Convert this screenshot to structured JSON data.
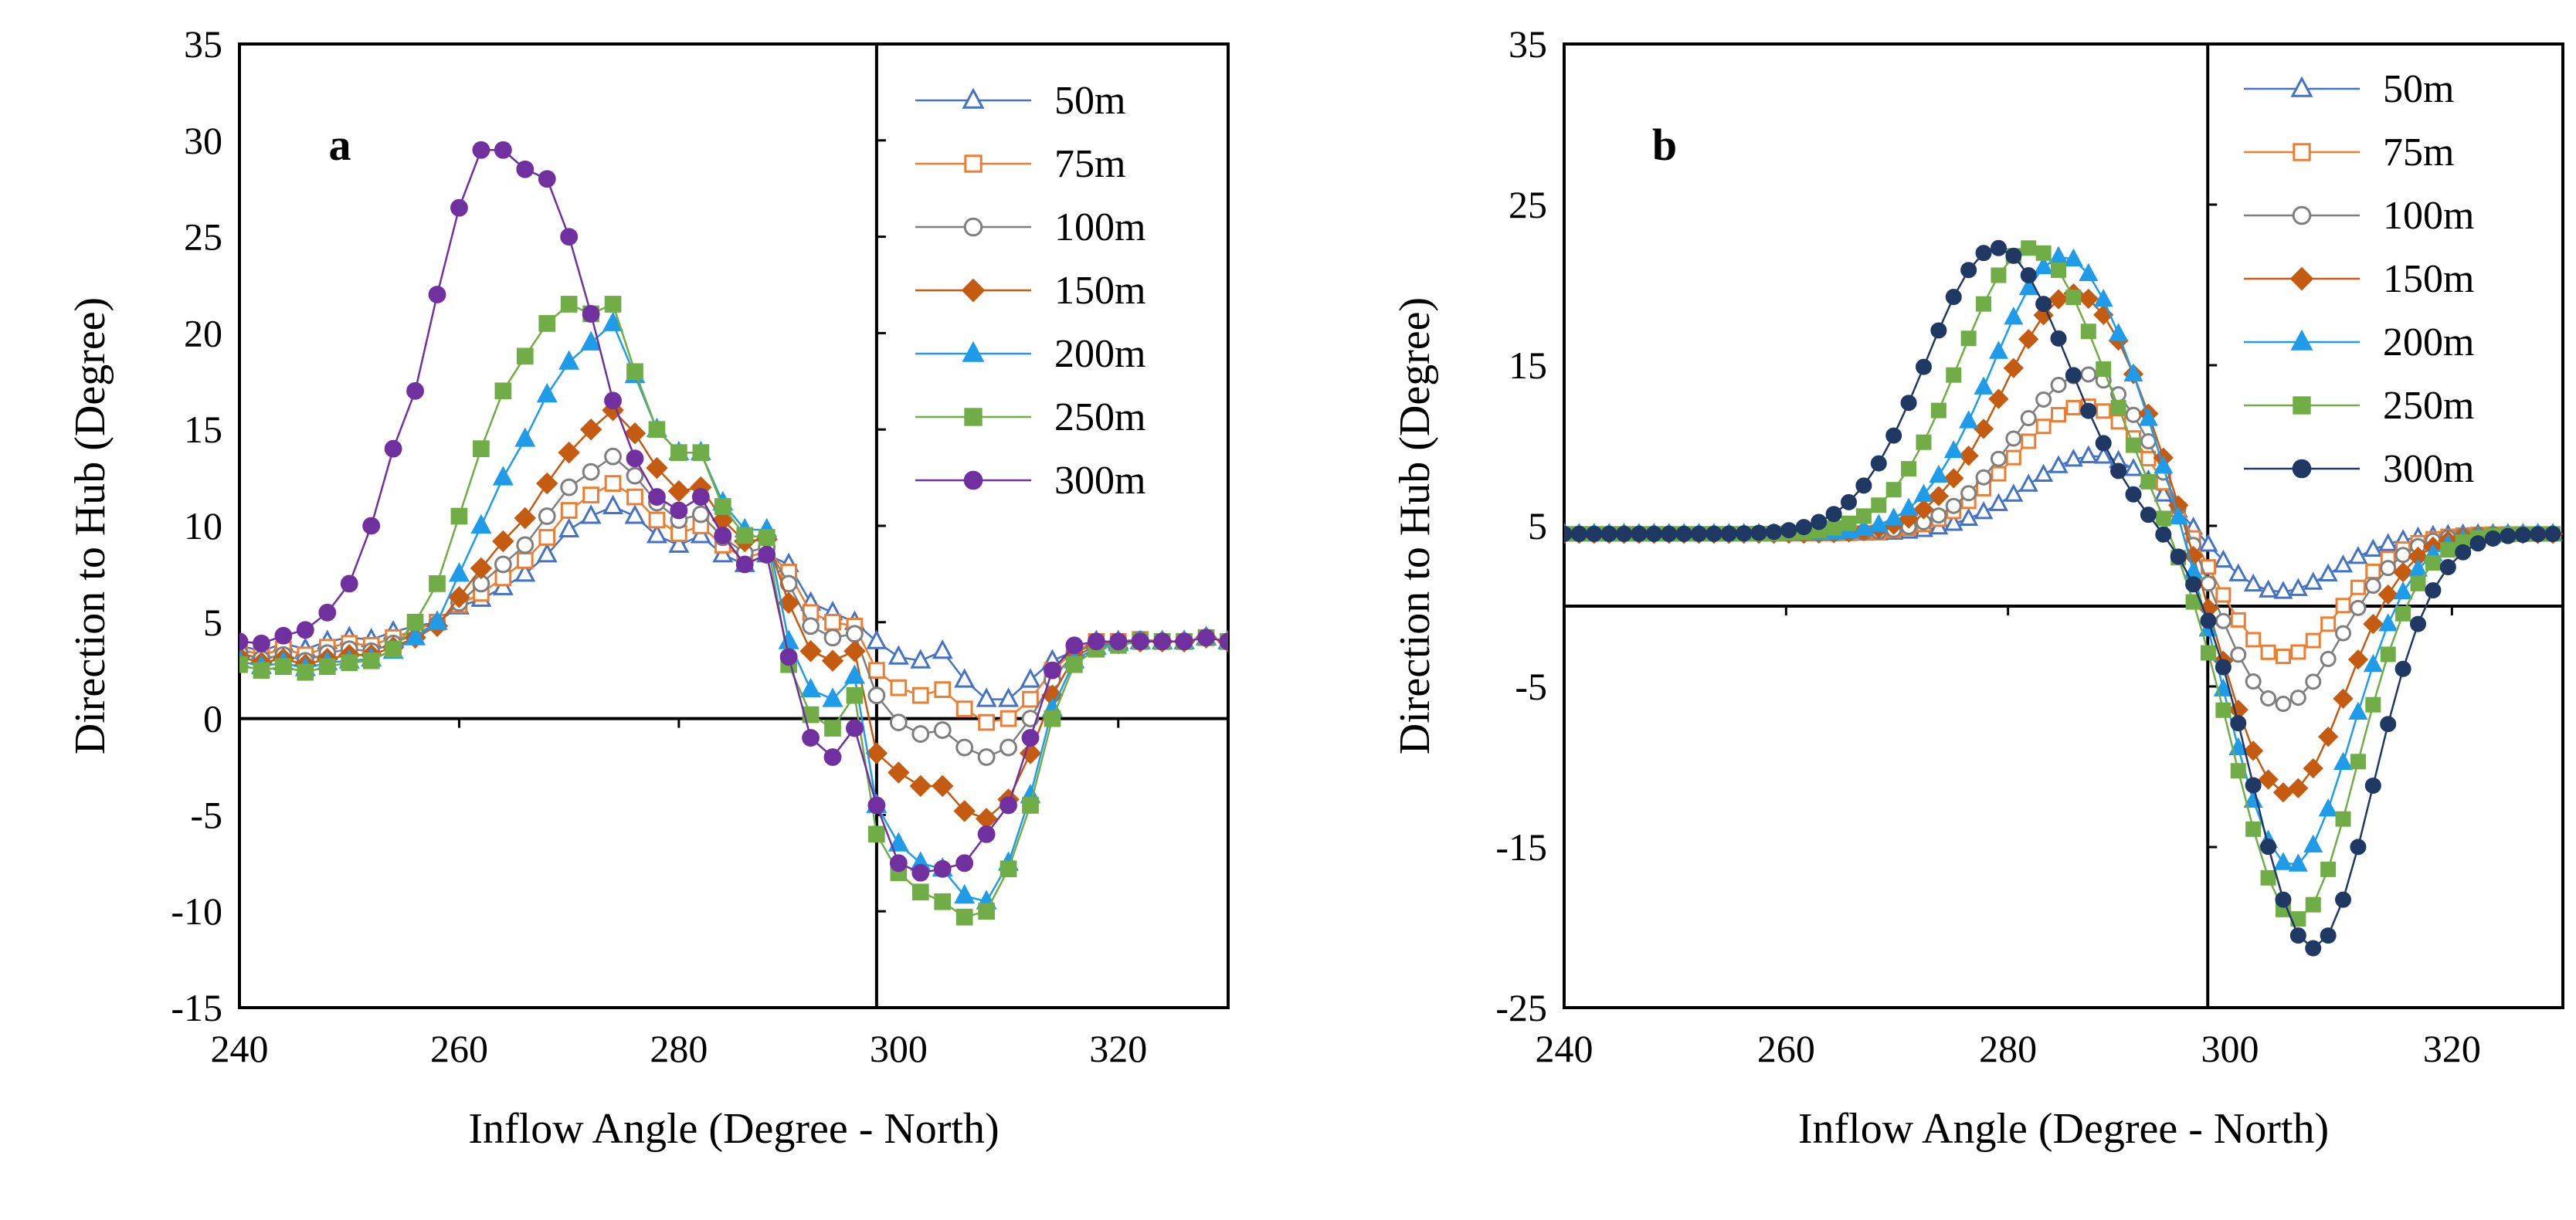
{
  "figure": {
    "panels": [
      "a",
      "b"
    ]
  },
  "chart_data": [
    {
      "type": "line",
      "panel_label": "a",
      "title": "",
      "xlabel": "Inflow Angle (Degree - North)",
      "ylabel": "Direction to Hub (Degree)",
      "xlim": [
        240,
        330
      ],
      "ylim": [
        -15,
        35
      ],
      "xticks": [
        240,
        260,
        280,
        300,
        320
      ],
      "yticks": [
        -15,
        -10,
        -5,
        0,
        5,
        10,
        15,
        20,
        25,
        30,
        35
      ],
      "vline_x": 298,
      "legend_position": "top-right",
      "x": [
        240,
        242,
        244,
        246,
        248,
        250,
        252,
        254,
        256,
        258,
        260,
        262,
        264,
        266,
        268,
        270,
        272,
        274,
        276,
        278,
        280,
        282,
        284,
        286,
        288,
        290,
        292,
        294,
        296,
        298,
        300,
        302,
        304,
        306,
        308,
        310,
        312,
        314,
        316,
        318,
        320,
        322,
        324,
        326,
        328,
        330
      ],
      "series": [
        {
          "name": "50m",
          "color": "#4472C4",
          "marker": "triangle",
          "filled": false,
          "values": [
            3.8,
            3.5,
            3.9,
            3.6,
            4.0,
            4.2,
            4.1,
            4.5,
            4.8,
            5.0,
            5.8,
            6.2,
            6.8,
            7.5,
            8.5,
            9.8,
            10.5,
            11,
            10.5,
            9.5,
            9.0,
            9.5,
            8.5,
            8.0,
            8.5,
            8.0,
            6.0,
            5.5,
            5.0,
            4.0,
            3.2,
            3.0,
            3.5,
            2.0,
            1.0,
            1.0,
            2.0,
            3.0,
            3.5,
            4.0,
            4.0,
            4.0,
            4.0,
            4.0,
            4.2,
            4.0
          ]
        },
        {
          "name": "75m",
          "color": "#ED7D31",
          "marker": "square",
          "filled": false,
          "values": [
            3.6,
            3.3,
            3.6,
            3.3,
            3.7,
            3.9,
            3.8,
            4.2,
            4.6,
            5.0,
            5.9,
            6.5,
            7.3,
            8.2,
            9.4,
            10.8,
            11.6,
            12.2,
            11.5,
            10.3,
            9.6,
            10.0,
            9.0,
            8.3,
            8.7,
            7.6,
            5.5,
            5.0,
            4.8,
            2.5,
            1.6,
            1.2,
            1.5,
            0.5,
            -0.2,
            0.0,
            1.0,
            2.5,
            3.5,
            4.0,
            4.0,
            4.1,
            4.0,
            4.0,
            4.2,
            4.0
          ]
        },
        {
          "name": "100m",
          "color": "#7F7F7F",
          "marker": "circle",
          "filled": false,
          "values": [
            3.4,
            3.1,
            3.3,
            3.0,
            3.4,
            3.6,
            3.5,
            3.9,
            4.4,
            4.9,
            6.0,
            7.0,
            8.0,
            9.0,
            10.5,
            12.0,
            12.8,
            13.6,
            12.6,
            11.2,
            10.3,
            10.6,
            9.4,
            8.6,
            8.9,
            7.0,
            4.8,
            4.2,
            4.4,
            1.2,
            -0.2,
            -0.8,
            -0.6,
            -1.5,
            -2.0,
            -1.5,
            0.0,
            2.0,
            3.4,
            3.9,
            4.0,
            4.1,
            4.0,
            4.0,
            4.2,
            4.0
          ]
        },
        {
          "name": "150m",
          "color": "#C55A11",
          "marker": "diamond",
          "filled": true,
          "values": [
            3.2,
            2.9,
            3.1,
            2.8,
            3.1,
            3.3,
            3.3,
            3.7,
            4.2,
            4.8,
            6.3,
            7.8,
            9.2,
            10.4,
            12.2,
            13.8,
            15.0,
            16.0,
            14.8,
            13.0,
            11.8,
            12.0,
            10.3,
            9.2,
            9.3,
            6.0,
            3.5,
            3.0,
            3.5,
            -1.8,
            -2.8,
            -3.5,
            -3.5,
            -4.8,
            -5.2,
            -4.2,
            -1.8,
            1.2,
            3.2,
            3.8,
            3.9,
            4.0,
            4.0,
            4.0,
            4.2,
            4.0
          ]
        },
        {
          "name": "200m",
          "color": "#1E9BE9",
          "marker": "triangle",
          "filled": true,
          "values": [
            3.0,
            2.7,
            2.9,
            2.6,
            2.9,
            3.0,
            3.1,
            3.5,
            4.2,
            5.0,
            7.5,
            10.0,
            12.5,
            14.5,
            16.8,
            18.5,
            19.5,
            20.5,
            17.8,
            15.0,
            13.8,
            13.8,
            11.2,
            9.8,
            9.8,
            4.0,
            1.5,
            1.0,
            2.2,
            -4.5,
            -6.5,
            -7.5,
            -7.8,
            -9.2,
            -9.5,
            -7.5,
            -4.0,
            0.5,
            3.0,
            3.7,
            3.9,
            4.0,
            4.0,
            4.0,
            4.2,
            4.0
          ]
        },
        {
          "name": "250m",
          "color": "#70AD47",
          "marker": "square",
          "filled": true,
          "values": [
            2.8,
            2.5,
            2.7,
            2.4,
            2.7,
            2.9,
            3.0,
            3.6,
            5.0,
            7.0,
            10.5,
            14.0,
            17.0,
            18.8,
            20.5,
            21.5,
            21.0,
            21.5,
            18.0,
            15.0,
            13.8,
            13.8,
            11.0,
            9.5,
            9.4,
            2.8,
            0.2,
            -0.5,
            1.2,
            -6.0,
            -8.0,
            -9.0,
            -9.5,
            -10.3,
            -10.0,
            -7.8,
            -4.5,
            0.0,
            2.8,
            3.6,
            3.8,
            4.0,
            4.0,
            4.0,
            4.2,
            4.0
          ]
        },
        {
          "name": "300m",
          "color": "#7030A0",
          "marker": "circle",
          "filled": true,
          "values": [
            4.0,
            3.9,
            4.3,
            4.6,
            5.5,
            7.0,
            10.0,
            14.0,
            17.0,
            22.0,
            26.5,
            29.5,
            29.5,
            28.5,
            28.0,
            25.0,
            21.0,
            16.5,
            13.5,
            11.5,
            10.8,
            11.5,
            9.5,
            8.0,
            8.5,
            3.2,
            -1.0,
            -2.0,
            -0.5,
            -4.5,
            -7.5,
            -8.0,
            -7.8,
            -7.5,
            -6.0,
            -4.5,
            -1.0,
            2.5,
            3.8,
            4.0,
            4.0,
            4.0,
            4.0,
            4.0,
            4.2,
            4.0
          ]
        }
      ]
    },
    {
      "type": "line",
      "panel_label": "b",
      "title": "",
      "xlabel": "Inflow Angle (Degree - North)",
      "ylabel": "Direction to Hub (Degree)",
      "xlim": [
        240,
        330
      ],
      "ylim": [
        -25,
        35
      ],
      "xticks": [
        240,
        260,
        280,
        300,
        320
      ],
      "yticks": [
        -25,
        -15,
        -5,
        5,
        15,
        25,
        35
      ],
      "vline_x": 298,
      "legend_position": "top-right",
      "series": [
        {
          "name": "50m",
          "color": "#4472C4",
          "marker": "triangle",
          "filled": false,
          "peak_x": 288,
          "peak_y": 9.4,
          "trough_x": 304,
          "trough_y": 0.7,
          "sigma": 9
        },
        {
          "name": "75m",
          "color": "#ED7D31",
          "marker": "square",
          "filled": false,
          "peak_x": 287,
          "peak_y": 12.5,
          "trough_x": 304.5,
          "trough_y": -3.3,
          "sigma": 9
        },
        {
          "name": "100m",
          "color": "#7F7F7F",
          "marker": "circle",
          "filled": false,
          "peak_x": 287,
          "peak_y": 14.5,
          "trough_x": 304.5,
          "trough_y": -6.3,
          "sigma": 9
        },
        {
          "name": "150m",
          "color": "#C55A11",
          "marker": "diamond",
          "filled": true,
          "peak_x": 286,
          "peak_y": 19.5,
          "trough_x": 305,
          "trough_y": -11.8,
          "sigma": 9
        },
        {
          "name": "200m",
          "color": "#1E9BE9",
          "marker": "triangle",
          "filled": true,
          "peak_x": 285,
          "peak_y": 21.8,
          "trough_x": 305.5,
          "trough_y": -16.3,
          "sigma": 9
        },
        {
          "name": "250m",
          "color": "#70AD47",
          "marker": "square",
          "filled": true,
          "peak_x": 282,
          "peak_y": 22.3,
          "trough_x": 306,
          "trough_y": -19.5,
          "sigma": 9
        },
        {
          "name": "300m",
          "color": "#1F3864",
          "marker": "circle",
          "filled": true,
          "peak_x": 279,
          "peak_y": 22.3,
          "trough_x": 307.5,
          "trough_y": -21.3,
          "sigma": 9
        }
      ],
      "baseline": 4.5
    }
  ]
}
